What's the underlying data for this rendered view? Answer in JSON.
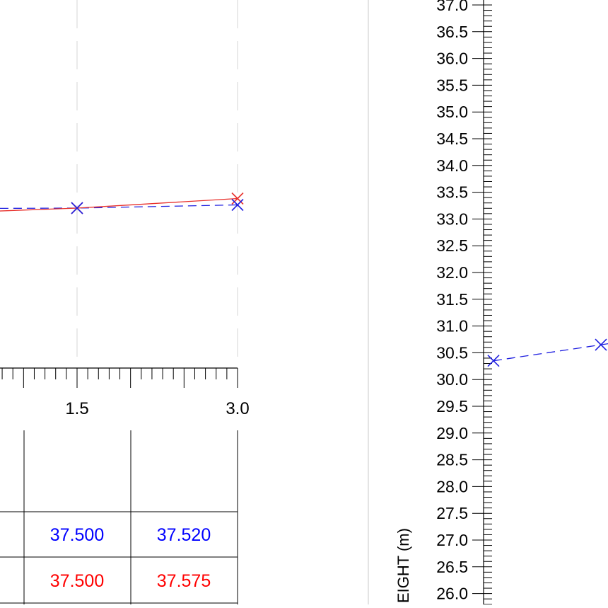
{
  "colors": {
    "existing": "#e8312c",
    "design": "#1f1fe0",
    "axis": "#000000",
    "grid": "#d6d6d6",
    "table_existing_text": "#ff0000",
    "table_design_text": "#0000ff"
  },
  "chart_data": [
    {
      "type": "line",
      "panel": "cross-section (partial, left)",
      "title": "",
      "xlabel": "",
      "ylabel": "",
      "x_tick_labels": [
        "1.5",
        "3.0"
      ],
      "grid": true,
      "series": [
        {
          "color": "#1f1fe0",
          "style": "dashed",
          "marker": "x",
          "points": [
            [
              -0.1,
              33.19
            ],
            [
              1.5,
              33.2
            ],
            [
              3.0,
              33.25
            ]
          ]
        },
        {
          "color": "#e8312c",
          "style": "solid",
          "marker": "x",
          "points": [
            [
              -0.1,
              33.1
            ],
            [
              1.5,
              33.2
            ],
            [
              3.0,
              33.35
            ]
          ]
        }
      ]
    },
    {
      "type": "line",
      "panel": "longitudinal profile (partial, right)",
      "ylabel": "EIGHT (m)",
      "ylim": [
        26.0,
        37.0
      ],
      "y_tick_labels": [
        "37.0",
        "36.5",
        "36.0",
        "35.5",
        "35.0",
        "34.5",
        "34.0",
        "33.5",
        "33.0",
        "32.5",
        "32.0",
        "31.5",
        "31.0",
        "30.5",
        "30.0",
        "29.5",
        "29.0",
        "28.5",
        "28.0",
        "27.5",
        "27.0",
        "26.5",
        "26.0"
      ],
      "series": [
        {
          "color": "#1f1fe0",
          "style": "dashed",
          "marker": "x",
          "points": [
            [
              0,
              30.35
            ],
            [
              1,
              30.65
            ]
          ]
        }
      ]
    }
  ],
  "table": {
    "rows": [
      {
        "kind": "design",
        "values": [
          "37.500",
          "37.520"
        ]
      },
      {
        "kind": "existing",
        "values": [
          "37.500",
          "37.575"
        ]
      }
    ]
  }
}
